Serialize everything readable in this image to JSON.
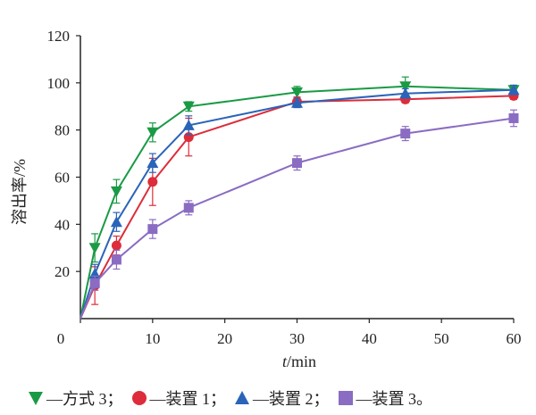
{
  "chart_data": {
    "type": "line",
    "ylabel": "溶出率/%",
    "xlabel_italic": "t",
    "xlabel_rest": "/min",
    "xlim": [
      0,
      60
    ],
    "ylim": [
      0,
      120
    ],
    "xticks": [
      0,
      10,
      20,
      30,
      40,
      50,
      60
    ],
    "yticks": [
      20,
      40,
      60,
      80,
      100,
      120
    ],
    "grid": false,
    "legend_position": "bottom",
    "series": [
      {
        "name": "—方式 3；",
        "color": "#1a9a45",
        "marker": "triangle-down",
        "x": [
          0,
          2,
          5,
          10,
          15,
          30,
          45,
          60
        ],
        "y": [
          0,
          30,
          54,
          79,
          90,
          96,
          98.5,
          97
        ],
        "err": [
          0,
          6,
          5,
          4,
          2,
          2.5,
          4,
          2
        ]
      },
      {
        "name": "—装置 1；",
        "color": "#dd2c3a",
        "marker": "circle",
        "x": [
          0,
          2,
          5,
          10,
          15,
          30,
          45,
          60
        ],
        "y": [
          0,
          14,
          31,
          58,
          77,
          92,
          93,
          94.5
        ],
        "err": [
          0,
          8,
          4,
          10,
          8,
          2,
          1.5,
          1.5
        ]
      },
      {
        "name": "—装置 2；",
        "color": "#2a64b8",
        "marker": "triangle-up",
        "x": [
          0,
          2,
          5,
          10,
          15,
          30,
          45,
          60
        ],
        "y": [
          0,
          19,
          41,
          66,
          82,
          91.5,
          95.5,
          97
        ],
        "err": [
          0,
          4,
          4,
          4,
          4,
          2,
          2,
          2
        ]
      },
      {
        "name": "—装置 3。",
        "color": "#8a6cc2",
        "marker": "square",
        "x": [
          0,
          2,
          5,
          10,
          15,
          30,
          45,
          60
        ],
        "y": [
          0,
          15,
          25,
          38,
          47,
          66,
          78.5,
          85
        ],
        "err": [
          0,
          3,
          4,
          4,
          3,
          3,
          3,
          3.5
        ]
      }
    ]
  }
}
